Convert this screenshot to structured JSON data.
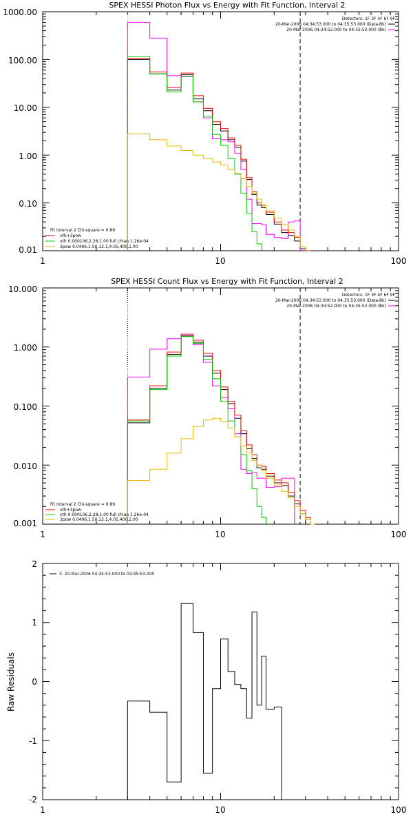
{
  "panels": [
    {
      "title": "SPEX HESSI Photon Flux vs Energy with Fit Function, Interval 2",
      "detectors": "Detectors: 1F 3F 4F 6F 9F",
      "time_lines": [
        {
          "text": "20-Mar-2006 04:34:53.000 to 04:35:53.000 (Data-Bk)",
          "color": "#000000"
        },
        {
          "text": "20-Mar-2006 04:34:52.000 to 04:35:52.000 (Bk)",
          "color": "#ff00ff"
        }
      ],
      "fit_lines": [
        {
          "text": "Fit Interval 2   Chi-square = 0.89",
          "color": null
        },
        {
          "text": "vth+3pow",
          "color": "#ff0000"
        },
        {
          "text": "vth 0.000106,2.28,1.00   full chian 1.26e-04",
          "color": "#00cc00"
        },
        {
          "text": "3pow 0.0496,1.50,12.1,4.05,400,1.00",
          "color": "#e8b800"
        }
      ],
      "ytick_labels": [
        "1000.00",
        "100.00",
        "10.00",
        "1.00",
        "0.10",
        "0.01"
      ],
      "xtick_labels": [
        "1",
        "10",
        "100"
      ]
    },
    {
      "title": "SPEX HESSI Count Flux vs Energy with Fit Function, Interval 2",
      "detectors": "Detectors: 1F 3F 4F 6F 9F",
      "time_lines": [
        {
          "text": "20-Mar-2006 04:34:53.000 to 04:35:53.000 (Data-Bk)",
          "color": "#000000"
        },
        {
          "text": "20-Mar-2006 04:34:52.000 to 04:35:52.000 (Bk)",
          "color": "#ff00ff"
        }
      ],
      "fit_lines": [
        {
          "text": "Fit Interval 2   Chi-square = 0.89",
          "color": null
        },
        {
          "text": "vth+3pow",
          "color": "#ff0000"
        },
        {
          "text": "vth 0.000106,2.28,1.00   full chian 1.26e-04",
          "color": "#00cc00"
        },
        {
          "text": "3pow 0.0496,1.50,12.1,4.05,400,1.00",
          "color": "#e8b800"
        }
      ],
      "ytick_labels": [
        "10.000",
        "1.000",
        "0.100",
        "0.010",
        "0.001"
      ],
      "xtick_labels": [
        "1",
        "10",
        "100"
      ]
    },
    {
      "ylabel": "Raw Residuals",
      "legend": "3. 20-Mar-2006 04:34:53.000 to 04:35:53.000",
      "ytick_labels": [
        "2",
        "1",
        "0",
        "-1",
        "-2"
      ],
      "xtick_labels": [
        "1",
        "10",
        "100"
      ]
    }
  ],
  "chart_data": [
    {
      "type": "line",
      "x_scale": "log",
      "y_scale": "log",
      "xlim": [
        1,
        100
      ],
      "ylim": [
        0.01,
        1000
      ],
      "bin_edges": [
        3,
        4,
        5,
        6,
        7,
        8,
        9,
        10,
        11,
        12,
        13,
        14,
        15,
        16,
        17,
        18,
        20,
        22,
        24,
        26,
        28,
        30,
        32
      ],
      "vlines": [
        {
          "x": 3.0,
          "style": "dotted",
          "color": "#e8b800"
        },
        {
          "x": 28,
          "style": "dashed",
          "color": "#000000"
        }
      ],
      "series": [
        {
          "color": "#000000",
          "values": [
            100,
            50,
            23,
            48,
            15,
            8.5,
            4.4,
            3.2,
            2.1,
            1.45,
            0.75,
            0.31,
            0.15,
            0.09,
            0.08,
            0.057,
            0.036,
            0.024,
            0.021,
            0.016,
            0.011,
            null
          ]
        },
        {
          "color": "#ff00ff",
          "values": [
            600,
            280,
            46,
            45,
            13,
            6.0,
            2.2,
            2.1,
            1.9,
            1.1,
            0.5,
            0.12,
            0.037,
            0.037,
            0.035,
            0.022,
            0.019,
            0.018,
            0.04,
            0.042,
            null,
            null
          ]
        },
        {
          "color": "#ff0000",
          "values": [
            105,
            55,
            26,
            52,
            17.5,
            9.5,
            5.0,
            3.6,
            2.3,
            1.6,
            0.82,
            0.34,
            0.17,
            0.1,
            0.089,
            0.064,
            0.04,
            0.027,
            0.024,
            0.019,
            0.012,
            0.01
          ]
        },
        {
          "color": "#00cc00",
          "values": [
            115,
            50,
            21,
            44,
            13,
            6.5,
            2.7,
            1.6,
            0.85,
            0.4,
            0.16,
            0.06,
            0.025,
            0.014,
            null,
            null,
            null,
            null,
            null,
            null,
            null,
            null
          ]
        },
        {
          "color": "#e8b800",
          "values": [
            2.8,
            2.1,
            1.55,
            1.25,
            1.0,
            0.85,
            0.72,
            0.62,
            0.5,
            0.42,
            0.32,
            0.22,
            0.16,
            0.12,
            0.09,
            0.068,
            0.048,
            0.036,
            0.027,
            0.02,
            0.012,
            null
          ]
        }
      ]
    },
    {
      "type": "line",
      "x_scale": "log",
      "y_scale": "log",
      "xlim": [
        1,
        100
      ],
      "ylim": [
        0.001,
        10
      ],
      "bin_edges": [
        3,
        4,
        5,
        6,
        7,
        8,
        9,
        10,
        11,
        12,
        13,
        14,
        15,
        16,
        17,
        18,
        20,
        22,
        24,
        26,
        28,
        30,
        32,
        34
      ],
      "vlines": [
        {
          "x": 3.0,
          "style": "dotted",
          "color": "#000000"
        },
        {
          "x": 28,
          "style": "dashed",
          "color": "#000000"
        }
      ],
      "series": [
        {
          "color": "#000000",
          "values": [
            0.052,
            0.2,
            0.75,
            1.55,
            1.2,
            0.7,
            0.36,
            0.19,
            0.11,
            0.062,
            0.034,
            0.019,
            0.013,
            0.009,
            0.0085,
            0.0065,
            0.005,
            0.0045,
            0.003,
            0.0022,
            0.0015,
            null,
            null
          ]
        },
        {
          "color": "#ff00ff",
          "values": [
            0.31,
            0.92,
            1.38,
            1.52,
            1.1,
            0.55,
            0.22,
            0.14,
            0.09,
            0.034,
            0.0085,
            0.0072,
            0.0075,
            0.006,
            0.006,
            0.0042,
            0.0043,
            0.006,
            0.006,
            null,
            null,
            null,
            null
          ]
        },
        {
          "color": "#ff0000",
          "values": [
            0.058,
            0.22,
            0.82,
            1.65,
            1.3,
            0.78,
            0.4,
            0.21,
            0.12,
            0.07,
            0.038,
            0.022,
            0.015,
            0.01,
            0.0095,
            0.0072,
            0.0056,
            0.005,
            0.0034,
            0.0025,
            0.0017,
            0.0013,
            null
          ]
        },
        {
          "color": "#00cc00",
          "values": [
            0.056,
            0.19,
            0.7,
            1.5,
            1.15,
            0.62,
            0.29,
            0.12,
            0.056,
            0.03,
            0.015,
            0.008,
            0.004,
            0.002,
            0.0013,
            null,
            null,
            null,
            null,
            null,
            null,
            null,
            null
          ]
        },
        {
          "color": "#e8b800",
          "values": [
            0.0055,
            0.0085,
            0.016,
            0.028,
            0.045,
            0.058,
            0.062,
            0.055,
            0.042,
            0.03,
            0.021,
            0.016,
            0.012,
            0.01,
            0.008,
            0.006,
            0.0046,
            0.0036,
            0.0028,
            0.002,
            0.0015,
            0.0012,
            0.001
          ]
        }
      ]
    },
    {
      "type": "line",
      "x_scale": "log",
      "y_scale": "linear",
      "xlim": [
        1,
        100
      ],
      "ylim": [
        -2,
        2
      ],
      "bin_edges": [
        3,
        4,
        5,
        6,
        7,
        8,
        9,
        10,
        11,
        12,
        13,
        14,
        15,
        16,
        17,
        18,
        20,
        22,
        24,
        26,
        28
      ],
      "series": [
        {
          "color": "#000000",
          "values": [
            -0.33,
            -0.52,
            -1.7,
            1.32,
            0.83,
            -1.55,
            -0.12,
            0.72,
            0.17,
            -0.05,
            -0.12,
            -0.62,
            1.18,
            -0.4,
            0.43,
            -0.47,
            -0.43,
            null,
            null,
            null
          ]
        }
      ]
    }
  ]
}
